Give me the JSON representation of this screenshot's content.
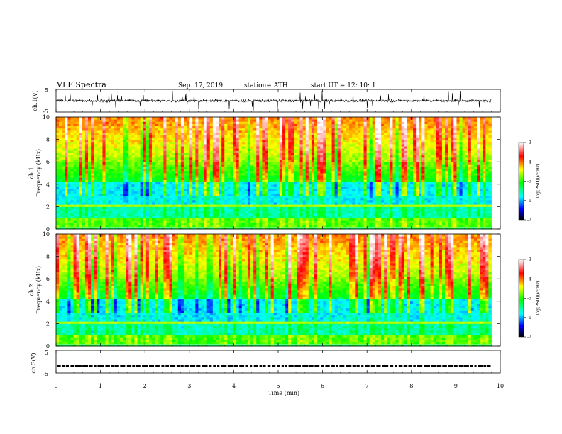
{
  "header": {
    "title": "VLF  Spectra",
    "date": "Sep. 17, 2019",
    "station": "station= ATH",
    "start": "start  UT  =    12: 10: 1"
  },
  "chart_data": [
    {
      "type": "line",
      "name": "ch1-waveform",
      "ylabel": "ch.1(V)",
      "ylim": [
        -5,
        5
      ],
      "yticks": [
        "5",
        "-5"
      ],
      "xlim": [
        0,
        10
      ],
      "data_end": 9.8,
      "baseline": 0,
      "note_values": "noisy waveform approx. between -2 and 2 V with spikes"
    },
    {
      "type": "heatmap",
      "name": "ch1-spectrogram",
      "ylabel_line1": "ch.1",
      "ylabel_line2": "Frequency  (kHz)",
      "ylim": [
        0,
        10
      ],
      "yticks": [
        "0",
        "2",
        "4",
        "6",
        "8",
        "10"
      ],
      "xlim": [
        0,
        10
      ],
      "data_end": 9.8,
      "colorbar": {
        "label": "log(PSD)(V²/Hz)",
        "ticks": [
          "-3",
          "-4",
          "-5",
          "-6",
          "-7"
        ],
        "range": [
          -7,
          -3
        ]
      }
    },
    {
      "type": "heatmap",
      "name": "ch2-spectrogram",
      "ylabel_line1": "ch.2",
      "ylabel_line2": "Frequency  (kHz)",
      "ylim": [
        0,
        10
      ],
      "yticks": [
        "0",
        "2",
        "4",
        "6",
        "8",
        "10"
      ],
      "xlim": [
        0,
        10
      ],
      "data_end": 9.8,
      "colorbar": {
        "label": "log(PSD)(V²/Hz)",
        "ticks": [
          "-3",
          "-4",
          "-5",
          "-6",
          "-7"
        ],
        "range": [
          -7,
          -3
        ]
      }
    },
    {
      "type": "line",
      "name": "ch3-waveform",
      "ylabel": "ch.3(V)",
      "ylim": [
        -5,
        5
      ],
      "yticks": [
        "5",
        "-5"
      ],
      "xlim": [
        0,
        10
      ],
      "data_end": 9.8,
      "level": -2,
      "xlabel": "Time  (min)",
      "xticks": [
        "0",
        "1",
        "2",
        "3",
        "4",
        "5",
        "6",
        "7",
        "8",
        "9",
        "10"
      ]
    }
  ],
  "colors": {
    "colormap": [
      "#000000",
      "#0000ff",
      "#00ffff",
      "#00ff00",
      "#ffff00",
      "#ff0000",
      "#ffffff"
    ],
    "line": "#000000"
  }
}
